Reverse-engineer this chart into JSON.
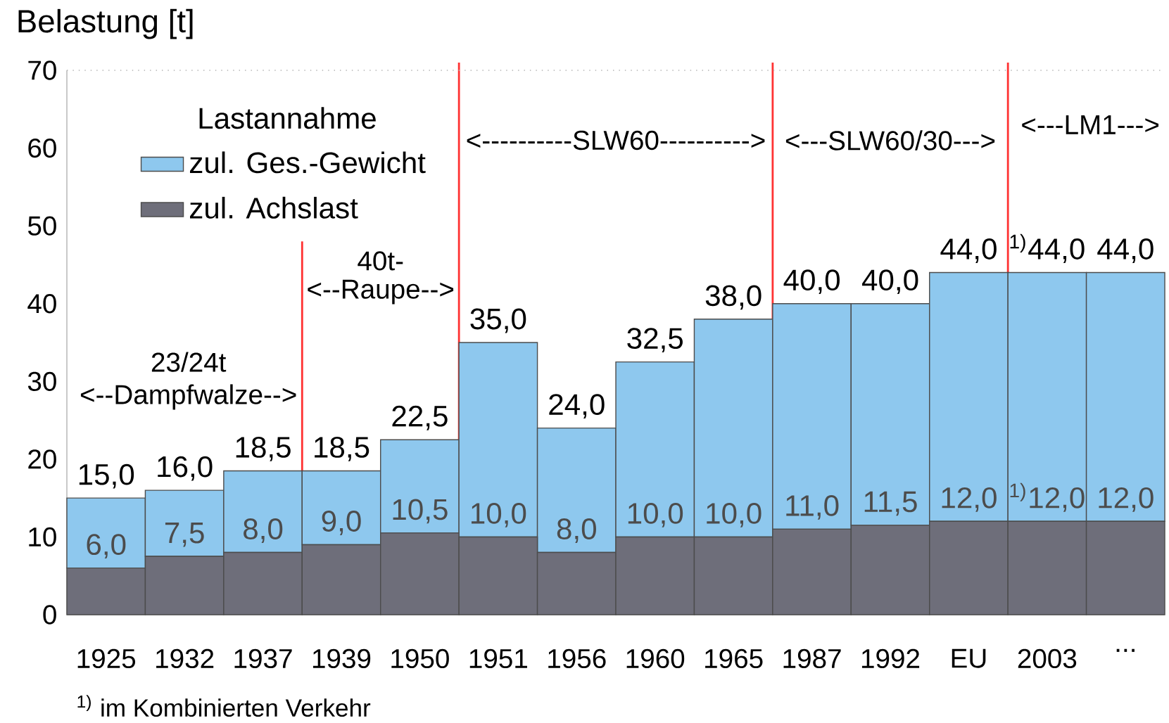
{
  "chart_data": {
    "type": "bar",
    "stacked": true,
    "ylabel": "Belastung [t]",
    "legend_title": "Lastannahme",
    "legend": "top left",
    "categories": [
      "1925",
      "1932",
      "1937",
      "1939",
      "1950",
      "1951",
      "1956",
      "1960",
      "1965",
      "1987",
      "1992",
      "EU",
      "2003",
      "..."
    ],
    "ylim": [
      0,
      70
    ],
    "yticks": [
      0,
      10,
      20,
      30,
      40,
      50,
      60,
      70
    ],
    "series": [
      {
        "name": "zul. Achslast",
        "color": "#6e6e7a",
        "values": [
          6,
          7.5,
          8,
          9,
          10.5,
          10,
          8,
          10,
          10,
          11,
          11.5,
          12,
          12,
          12
        ],
        "value_labels": [
          "6,0",
          "7,5",
          "8,0",
          "9,0",
          "10,5",
          "10,0",
          "8,0",
          "10,0",
          "10,0",
          "11,0",
          "11,5",
          "12,0",
          "$^{1)}$12,0",
          "12,0"
        ]
      },
      {
        "name": "zul. Ges.-Gewicht",
        "color": "#8ec8ee",
        "values": [
          9,
          8.5,
          10.5,
          9.5,
          12,
          25,
          16,
          22.5,
          28,
          29,
          28.5,
          32,
          32,
          32
        ]
      }
    ],
    "totals": [
      "15,0",
      "16,0",
      "18,5",
      "18,5",
      "22,5",
      "35,0",
      "24,0",
      "32,5",
      "38,0",
      "40,0",
      "40,0",
      "44,0",
      "$^{1)}$44,0",
      "44,0"
    ],
    "annotations": [
      "23/24t",
      "<--Dampfwalze-->",
      "40t-",
      "<--Raupe-->",
      "<----------SLW60---------->",
      "<---SLW60/30--->",
      "<---LM1--->",
      "$^{1)}$ im Kombinierten Verkehr"
    ]
  }
}
